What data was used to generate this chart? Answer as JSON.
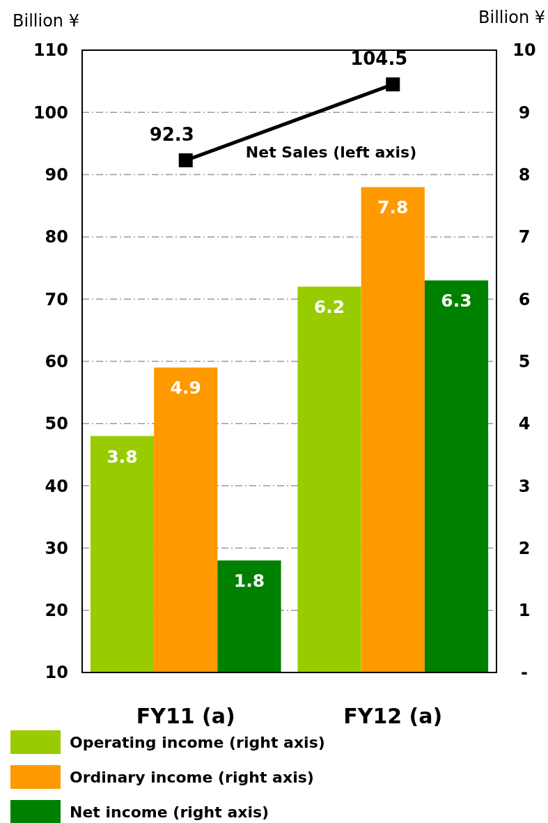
{
  "chart_data": {
    "type": "bar",
    "categories": [
      "FY11 (a)",
      "FY12 (a)"
    ],
    "ylabel": "Billion ¥",
    "y2label": "Billion ¥",
    "ylim": [
      10,
      110
    ],
    "yticks": [
      10,
      20,
      30,
      40,
      50,
      60,
      70,
      80,
      90,
      100,
      110
    ],
    "y2lim": [
      0,
      10
    ],
    "y2ticks": [
      {
        "value": 0,
        "label": "-"
      },
      1,
      2,
      3,
      4,
      5,
      6,
      7,
      8,
      9,
      10
    ],
    "grid": "y",
    "legend": "bottom",
    "data_labels": true,
    "series": [
      {
        "name": "Operating income (right axis)",
        "color": "#99cc00",
        "values": [
          3.8,
          6.2
        ],
        "axis": "y2"
      },
      {
        "name": "Ordinary income (right axis)",
        "color": "#ff9900",
        "values": [
          4.9,
          7.8
        ],
        "axis": "y2"
      },
      {
        "name": "Net income (right axis)",
        "color": "#008000",
        "values": [
          1.8,
          6.3
        ],
        "axis": "y2"
      },
      {
        "name": "Net Sales (left axis)",
        "type": "line",
        "color": "#000000",
        "values": [
          92.3,
          104.5
        ],
        "axis": "y",
        "marker": "square",
        "line_style": "solid"
      }
    ]
  }
}
